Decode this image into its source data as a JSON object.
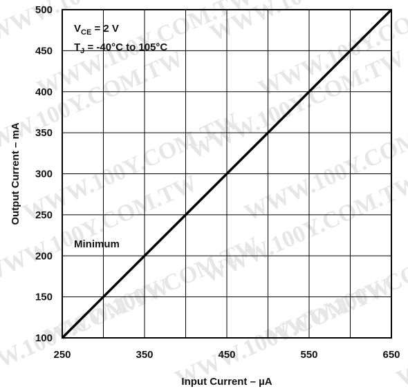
{
  "chart_data": {
    "type": "line",
    "title": "",
    "xlabel": "Input Current – µA",
    "ylabel": "Output Current – mA",
    "xlim": [
      250,
      650
    ],
    "ylim": [
      100,
      500
    ],
    "grid": true,
    "xticks": [
      250,
      350,
      450,
      550,
      650
    ],
    "yticks": [
      100,
      150,
      200,
      250,
      300,
      350,
      400,
      450,
      500
    ],
    "x_grid_step": 50,
    "y_grid_step": 50,
    "series": [
      {
        "name": "Minimum",
        "x": [
          250,
          650
        ],
        "y": [
          100,
          500
        ]
      }
    ],
    "annotations": {
      "line1": {
        "main": "V",
        "sub": "CE",
        "rest": " = 2 V"
      },
      "line2": {
        "main": "T",
        "sub": "J",
        "rest": " = -40°C to 105°C"
      },
      "series_label": "Minimum"
    },
    "line_color": "#000000",
    "grid_color": "#000000"
  },
  "watermark": "WWW.100Y.COM.TW"
}
